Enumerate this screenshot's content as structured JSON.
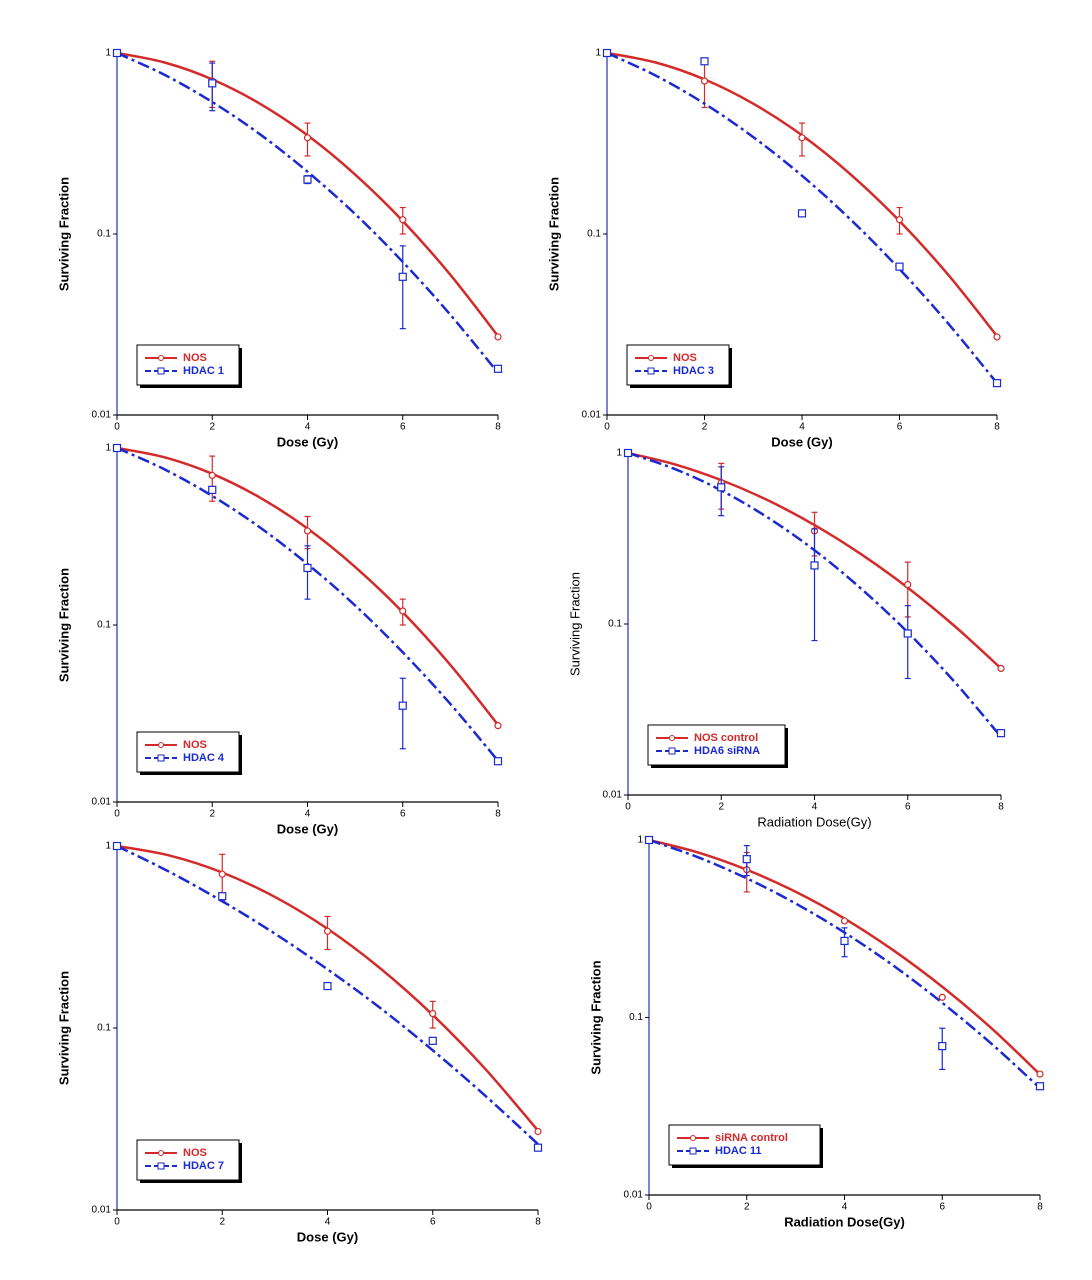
{
  "chart_data": [
    {
      "type": "scatter",
      "xlabel": "Dose (Gy)",
      "ylabel": "Surviving Fraction",
      "label_weight": "bold",
      "log_y": true,
      "grid": false,
      "legend": "lower left",
      "xlim": [
        0,
        8
      ],
      "ylim": [
        0.01,
        1
      ],
      "xticks": [
        0,
        2,
        4,
        6,
        8
      ],
      "yticks": [
        0.01,
        0.1,
        1
      ],
      "fit_x": [
        0,
        1,
        2,
        3,
        4,
        5,
        6,
        7,
        8
      ],
      "series": [
        {
          "name": "NOS",
          "color": "#d42a2a",
          "marker": "circle",
          "line_style": "solid",
          "x": [
            0,
            2,
            4,
            6,
            8
          ],
          "values": [
            1,
            0.7,
            0.34,
            0.12,
            0.027
          ],
          "errors": [
            null,
            0.2,
            0.07,
            0.02,
            null
          ],
          "fit": [
            1,
            0.886,
            0.715,
            0.525,
            0.351,
            0.213,
            0.118,
            0.0595,
            0.0273
          ]
        },
        {
          "name": "HDAC 1",
          "color": "#1a2ad0",
          "marker": "square",
          "line_style": "dashdot",
          "x": [
            0,
            2,
            4,
            6,
            8
          ],
          "values": [
            1,
            0.68,
            0.2,
            0.058,
            0.018
          ],
          "errors": [
            null,
            0.2,
            0.01,
            0.028,
            null
          ],
          "fit": [
            1,
            0.757,
            0.536,
            0.356,
            0.221,
            0.129,
            0.0701,
            0.0358,
            0.0171
          ]
        }
      ]
    },
    {
      "type": "scatter",
      "xlabel": "Dose (Gy)",
      "ylabel": "Surviving Fraction",
      "label_weight": "bold",
      "log_y": true,
      "grid": false,
      "legend": "lower left",
      "xlim": [
        0,
        8
      ],
      "ylim": [
        0.01,
        1
      ],
      "xticks": [
        0,
        2,
        4,
        6,
        8
      ],
      "yticks": [
        0.01,
        0.1,
        1
      ],
      "fit_x": [
        0,
        1,
        2,
        3,
        4,
        5,
        6,
        7,
        8
      ],
      "series": [
        {
          "name": "NOS",
          "color": "#d42a2a",
          "marker": "circle",
          "line_style": "solid",
          "x": [
            0,
            2,
            4,
            6,
            8
          ],
          "values": [
            1,
            0.7,
            0.34,
            0.12,
            0.027
          ],
          "errors": [
            null,
            0.2,
            0.07,
            0.02,
            null
          ],
          "fit": [
            1,
            0.886,
            0.715,
            0.525,
            0.351,
            0.213,
            0.118,
            0.0595,
            0.0273
          ]
        },
        {
          "name": "HDAC 3",
          "color": "#1a2ad0",
          "marker": "square",
          "line_style": "dashdot",
          "x": [
            0,
            2,
            4,
            6,
            8
          ],
          "values": [
            1,
            0.9,
            0.13,
            0.066,
            0.015
          ],
          "errors": [
            null,
            null,
            null,
            null,
            null
          ],
          "fit": [
            1,
            0.75,
            0.525,
            0.343,
            0.21,
            0.12,
            0.064,
            0.032,
            0.015
          ]
        }
      ]
    },
    {
      "type": "scatter",
      "xlabel": "Dose (Gy)",
      "ylabel": "Surviving Fraction",
      "label_weight": "bold",
      "log_y": true,
      "grid": false,
      "legend": "lower left",
      "xlim": [
        0,
        8
      ],
      "ylim": [
        0.01,
        1
      ],
      "xticks": [
        0,
        2,
        4,
        6,
        8
      ],
      "yticks": [
        0.01,
        0.1,
        1
      ],
      "fit_x": [
        0,
        1,
        2,
        3,
        4,
        5,
        6,
        7,
        8
      ],
      "series": [
        {
          "name": "NOS",
          "color": "#d42a2a",
          "marker": "circle",
          "line_style": "solid",
          "x": [
            0,
            2,
            4,
            6,
            8
          ],
          "values": [
            1,
            0.7,
            0.34,
            0.12,
            0.027
          ],
          "errors": [
            null,
            0.2,
            0.07,
            0.02,
            null
          ],
          "fit": [
            1,
            0.886,
            0.715,
            0.525,
            0.351,
            0.213,
            0.118,
            0.0595,
            0.0273
          ]
        },
        {
          "name": "HDAC 4",
          "color": "#1a2ad0",
          "marker": "square",
          "line_style": "dashdot",
          "x": [
            0,
            2,
            4,
            6,
            8
          ],
          "values": [
            1,
            0.58,
            0.21,
            0.035,
            0.017
          ],
          "errors": [
            null,
            null,
            0.07,
            0.015,
            null
          ],
          "fit": [
            1,
            0.757,
            0.536,
            0.356,
            0.221,
            0.129,
            0.0701,
            0.0358,
            0.0171
          ]
        }
      ]
    },
    {
      "type": "scatter",
      "xlabel": "Radiation Dose(Gy)",
      "ylabel": "Surviving Fraction",
      "label_weight": "normal",
      "log_y": true,
      "grid": false,
      "legend": "lower left",
      "xlim": [
        0,
        8
      ],
      "ylim": [
        0.01,
        1
      ],
      "xticks": [
        0,
        2,
        4,
        6,
        8
      ],
      "yticks": [
        0.01,
        0.1,
        1
      ],
      "fit_x": [
        0,
        1,
        2,
        3,
        4,
        5,
        6,
        7,
        8
      ],
      "series": [
        {
          "name": "NOS control",
          "color": "#d42a2a",
          "marker": "circle",
          "line_style": "solid",
          "x": [
            0,
            2,
            4,
            6,
            8
          ],
          "values": [
            1,
            0.67,
            0.35,
            0.17,
            0.055
          ],
          "errors": [
            null,
            0.2,
            0.1,
            0.06,
            null
          ],
          "fit": [
            1,
            0.859,
            0.694,
            0.529,
            0.379,
            0.256,
            0.163,
            0.0975,
            0.055
          ]
        },
        {
          "name": "HDA6 siRNA",
          "color": "#1a2ad0",
          "marker": "square",
          "line_style": "dashdot",
          "x": [
            0,
            2,
            4,
            6,
            8
          ],
          "values": [
            1,
            0.63,
            0.22,
            0.088,
            0.023
          ],
          "errors": [
            null,
            0.2,
            0.14,
            0.04,
            null
          ],
          "fit": [
            1,
            0.807,
            0.604,
            0.419,
            0.27,
            0.161,
            0.0894,
            0.046,
            0.0219
          ]
        }
      ]
    },
    {
      "type": "scatter",
      "xlabel": "Dose (Gy)",
      "ylabel": "Surviving Fraction",
      "label_weight": "bold",
      "log_y": true,
      "grid": false,
      "legend": "lower left",
      "xlim": [
        0,
        8
      ],
      "ylim": [
        0.01,
        1
      ],
      "xticks": [
        0,
        2,
        4,
        6,
        8
      ],
      "yticks": [
        0.01,
        0.1,
        1
      ],
      "fit_x": [
        0,
        1,
        2,
        3,
        4,
        5,
        6,
        7,
        8
      ],
      "series": [
        {
          "name": "NOS",
          "color": "#d42a2a",
          "marker": "circle",
          "line_style": "solid",
          "x": [
            0,
            2,
            4,
            6,
            8
          ],
          "values": [
            1,
            0.7,
            0.34,
            0.12,
            0.027
          ],
          "errors": [
            null,
            0.2,
            0.07,
            0.02,
            null
          ],
          "fit": [
            1,
            0.886,
            0.715,
            0.525,
            0.351,
            0.213,
            0.118,
            0.0595,
            0.0273
          ]
        },
        {
          "name": "HDAC 7",
          "color": "#1a2ad0",
          "marker": "square",
          "line_style": "dashdot",
          "x": [
            0,
            2,
            4,
            6,
            8
          ],
          "values": [
            1,
            0.53,
            0.17,
            0.085,
            0.022
          ],
          "errors": [
            null,
            null,
            null,
            null,
            null
          ],
          "fit": [
            1,
            0.72,
            0.497,
            0.33,
            0.21,
            0.129,
            0.0754,
            0.0424,
            0.023
          ]
        }
      ]
    },
    {
      "type": "scatter",
      "xlabel": "Radiation Dose(Gy)",
      "ylabel": "Surviving Fraction",
      "label_weight": "bold",
      "log_y": true,
      "grid": false,
      "legend": "lower left",
      "xlim": [
        0,
        8
      ],
      "ylim": [
        0.01,
        1
      ],
      "xticks": [
        0,
        2,
        4,
        6,
        8
      ],
      "yticks": [
        0.01,
        0.1,
        1
      ],
      "fit_x": [
        0,
        1,
        2,
        3,
        4,
        5,
        6,
        7,
        8
      ],
      "series": [
        {
          "name": "siRNA control",
          "color": "#d42a2a",
          "marker": "circle",
          "line_style": "solid",
          "x": [
            0,
            2,
            4,
            6,
            8
          ],
          "values": [
            1,
            0.68,
            0.35,
            0.13,
            0.048
          ],
          "errors": [
            null,
            0.17,
            null,
            null,
            null
          ],
          "fit": [
            1,
            0.851,
            0.68,
            0.511,
            0.361,
            0.239,
            0.149,
            0.0873,
            0.0478
          ]
        },
        {
          "name": "HDAC 11",
          "color": "#1a2ad0",
          "marker": "square",
          "line_style": "dashdot",
          "x": [
            0,
            2,
            4,
            6,
            8
          ],
          "values": [
            1,
            0.78,
            0.27,
            0.069,
            0.041
          ],
          "errors": [
            null,
            0.15,
            0.05,
            0.018,
            null
          ],
          "fit": [
            1,
            0.8,
            0.608,
            0.439,
            0.301,
            0.196,
            0.121,
            0.0714,
            0.04
          ]
        }
      ]
    }
  ]
}
